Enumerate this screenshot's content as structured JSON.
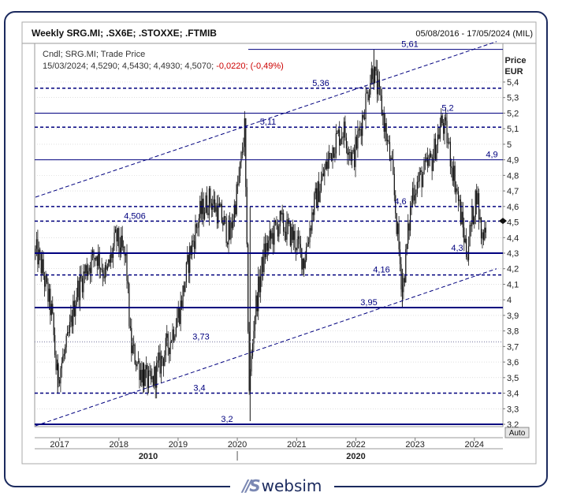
{
  "header": {
    "title": "Weekly SRG.MI; .SX6E; .STOXXE; .FTMIB",
    "date_range": "05/08/2016 - 17/05/2024 (MIL)"
  },
  "legend": {
    "line1": "Cndl; SRG.MI; Trade Price",
    "line2_prefix": "15/03/2024; 4,5290; 4,5430; 4,4930; 4,5070; ",
    "line2_change": "-0,0220; (-0,49%)",
    "change_color": "#cc0000"
  },
  "axis": {
    "price_label": "Price",
    "currency_label": "EUR",
    "auto_button": "Auto",
    "ticks": [
      "5,4",
      "5,3",
      "5,2",
      "5,1",
      "5",
      "4,9",
      "4,8",
      "4,7",
      "4,6",
      "4,5",
      "4,4",
      "4,3",
      "4,2",
      "4,1",
      "4",
      "3,9",
      "3,8",
      "3,7",
      "3,6",
      "3,5",
      "3,4",
      "3,3",
      "3,2"
    ],
    "years": [
      "2017",
      "2018",
      "2019",
      "2020",
      "2021",
      "2022",
      "2023",
      "2024"
    ],
    "decades": [
      "2010",
      "2020"
    ]
  },
  "colors": {
    "navy": "#00007f",
    "candle": "#111111",
    "grid": "#cccccc",
    "frame": "#1b2a5e"
  },
  "logo": {
    "mark": "//S",
    "text": "websim"
  },
  "chart_data": {
    "type": "candlestick",
    "title": "Weekly SRG.MI; .SX6E; .STOXXE; .FTMIB",
    "ylabel": "Price EUR",
    "ylim": [
      3.2,
      5.5
    ],
    "x_range": [
      "2016-08-05",
      "2024-05-17"
    ],
    "last_bar": {
      "date": "15/03/2024",
      "open": 4.529,
      "high": 4.543,
      "low": 4.493,
      "close": 4.507
    },
    "horizontal_levels": [
      {
        "value": 5.61,
        "label": "5,61",
        "style": "solid"
      },
      {
        "value": 5.36,
        "label": "5,36",
        "style": "dashed"
      },
      {
        "value": 5.2,
        "label": "5,2",
        "style": "solid"
      },
      {
        "value": 5.11,
        "label": "5,11",
        "style": "dashed"
      },
      {
        "value": 4.9,
        "label": "4,9",
        "style": "solid"
      },
      {
        "value": 4.6,
        "label": "4,6",
        "style": "dashed"
      },
      {
        "value": 4.506,
        "label": "4,506",
        "style": "dashed"
      },
      {
        "value": 4.3,
        "label": "4,3",
        "style": "solid"
      },
      {
        "value": 4.16,
        "label": "4,16",
        "style": "dashed"
      },
      {
        "value": 3.95,
        "label": "3,95",
        "style": "solid"
      },
      {
        "value": 3.73,
        "label": "3,73",
        "style": "dotted"
      },
      {
        "value": 3.4,
        "label": "3,4",
        "style": "dashed"
      },
      {
        "value": 3.2,
        "label": "3,2",
        "style": "solid"
      }
    ],
    "trend_channel": {
      "upper": [
        [
          "2016-08-05",
          4.66
        ],
        [
          "2024-05-17",
          5.66
        ]
      ],
      "lower": [
        [
          "2016-08-05",
          3.19
        ],
        [
          "2024-05-17",
          4.2
        ]
      ]
    },
    "price_path": [
      [
        "2016-08",
        4.3
      ],
      [
        "2016-09",
        4.2
      ],
      [
        "2016-11",
        3.9
      ],
      [
        "2016-12",
        3.5
      ],
      [
        "2017-02",
        3.7
      ],
      [
        "2017-04",
        4.05
      ],
      [
        "2017-06",
        4.2
      ],
      [
        "2017-08",
        4.3
      ],
      [
        "2017-10",
        4.15
      ],
      [
        "2017-12",
        4.4
      ],
      [
        "2018-02",
        4.25
      ],
      [
        "2018-03",
        3.7
      ],
      [
        "2018-05",
        3.55
      ],
      [
        "2018-07",
        3.45
      ],
      [
        "2018-09",
        3.6
      ],
      [
        "2018-11",
        3.75
      ],
      [
        "2019-01",
        3.95
      ],
      [
        "2019-03",
        4.3
      ],
      [
        "2019-05",
        4.55
      ],
      [
        "2019-07",
        4.65
      ],
      [
        "2019-09",
        4.55
      ],
      [
        "2019-11",
        4.4
      ],
      [
        "2020-01",
        4.8
      ],
      [
        "2020-02",
        5.1
      ],
      [
        "2020-03",
        3.4
      ],
      [
        "2020-04",
        3.9
      ],
      [
        "2020-06",
        4.3
      ],
      [
        "2020-09",
        4.5
      ],
      [
        "2020-12",
        4.4
      ],
      [
        "2021-02",
        4.25
      ],
      [
        "2021-04",
        4.6
      ],
      [
        "2021-06",
        4.8
      ],
      [
        "2021-08",
        5.0
      ],
      [
        "2021-10",
        5.1
      ],
      [
        "2021-12",
        4.9
      ],
      [
        "2022-02",
        5.2
      ],
      [
        "2022-04",
        5.5
      ],
      [
        "2022-06",
        5.2
      ],
      [
        "2022-08",
        4.8
      ],
      [
        "2022-10",
        4.05
      ],
      [
        "2022-12",
        4.7
      ],
      [
        "2023-02",
        4.8
      ],
      [
        "2023-04",
        4.9
      ],
      [
        "2023-06",
        5.15
      ],
      [
        "2023-07",
        5.05
      ],
      [
        "2023-09",
        4.7
      ],
      [
        "2023-11",
        4.3
      ],
      [
        "2024-01",
        4.7
      ],
      [
        "2024-02",
        4.4
      ],
      [
        "2024-03",
        4.51
      ]
    ]
  }
}
